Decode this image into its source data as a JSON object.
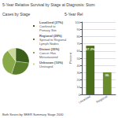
{
  "chart_data": [
    {
      "type": "pie",
      "title": "5-Year Relative Survival by Stage at Diagnosis: Stom",
      "subtitle": "Cases by Stage",
      "annotations": [
        "Both Sexes by SEER Summary Stage 2000"
      ],
      "categories": [
        "Localized (27%)",
        "Regional (28%)",
        "Distant (35%)",
        "Unknown (10%)"
      ],
      "sublabels": [
        "Confined to\nPrimary Site",
        "Spread to Regional\nLymph Nodes",
        "Cancer Has\nMetastasized",
        "Unstaged"
      ],
      "values": [
        27,
        28,
        35,
        10
      ],
      "colors": [
        "#3a5e1a",
        "#5a7e2a",
        "#8aaa4a",
        "#c8d898"
      ],
      "legend": "right"
    },
    {
      "type": "bar",
      "subtitle": "5-Year Rel",
      "categories": [
        "Localized",
        "Regional"
      ],
      "values": [
        67.2,
        30.5
      ],
      "value_labels": [
        "67.2%",
        "30."
      ],
      "data_labels": true,
      "colors": [
        "#4a6e1a",
        "#6b8c2a"
      ],
      "ylabel": "Percent",
      "ylim": [
        0,
        100
      ],
      "yticks": [
        0,
        10,
        20,
        30,
        40,
        50,
        60,
        70,
        80,
        90,
        100
      ],
      "grid": true
    }
  ]
}
